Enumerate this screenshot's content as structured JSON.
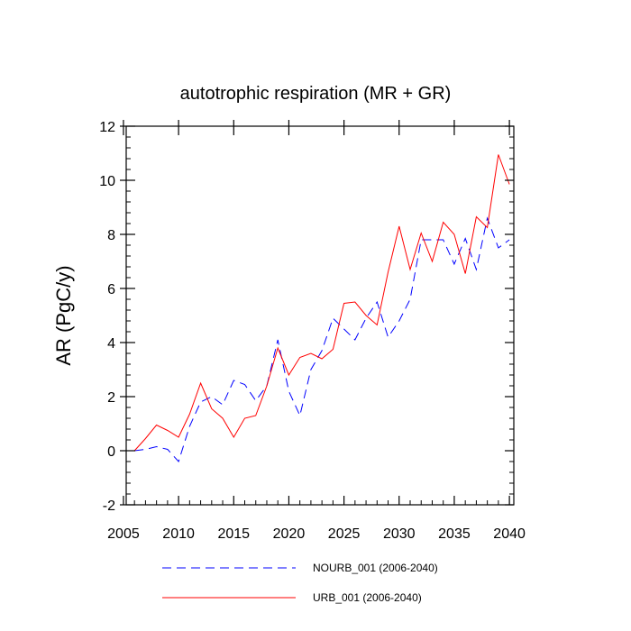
{
  "chart_data": {
    "type": "line",
    "title": "autotrophic respiration (MR + GR)",
    "xlabel": "",
    "ylabel": "AR  (PgC/y)",
    "xlim": [
      2006,
      2040
    ],
    "ylim": [
      -2,
      12
    ],
    "xticks": [
      2005,
      2010,
      2015,
      2020,
      2025,
      2030,
      2035,
      2040
    ],
    "yticks": [
      -2,
      0,
      2,
      4,
      6,
      8,
      10,
      12
    ],
    "x": [
      2006,
      2007,
      2008,
      2009,
      2010,
      2011,
      2012,
      2013,
      2014,
      2015,
      2016,
      2017,
      2018,
      2019,
      2020,
      2021,
      2022,
      2023,
      2024,
      2025,
      2026,
      2027,
      2028,
      2029,
      2030,
      2031,
      2032,
      2033,
      2034,
      2035,
      2036,
      2037,
      2038,
      2039,
      2040
    ],
    "series": [
      {
        "name": "NOURB_001 (2006-2040)",
        "color": "#0000ff",
        "style": "dashed",
        "values": [
          0.0,
          0.05,
          0.15,
          0.05,
          -0.4,
          0.9,
          1.8,
          2.0,
          1.7,
          2.6,
          2.45,
          1.85,
          2.4,
          4.1,
          2.2,
          1.3,
          3.0,
          3.7,
          4.9,
          4.5,
          4.1,
          4.9,
          5.5,
          4.2,
          4.8,
          5.6,
          7.8,
          7.8,
          7.8,
          6.9,
          7.85,
          6.7,
          8.6,
          7.5,
          7.8
        ]
      },
      {
        "name": "URB_001 (2006-2040)",
        "color": "#ff0000",
        "style": "solid",
        "values": [
          0.0,
          0.45,
          0.95,
          0.75,
          0.5,
          1.35,
          2.5,
          1.55,
          1.2,
          0.5,
          1.2,
          1.3,
          2.4,
          3.8,
          2.8,
          3.45,
          3.6,
          3.4,
          3.75,
          5.45,
          5.5,
          5.0,
          4.65,
          6.6,
          8.3,
          6.7,
          8.05,
          7.0,
          8.45,
          8.0,
          6.55,
          8.65,
          8.25,
          10.95,
          9.85
        ]
      }
    ]
  }
}
